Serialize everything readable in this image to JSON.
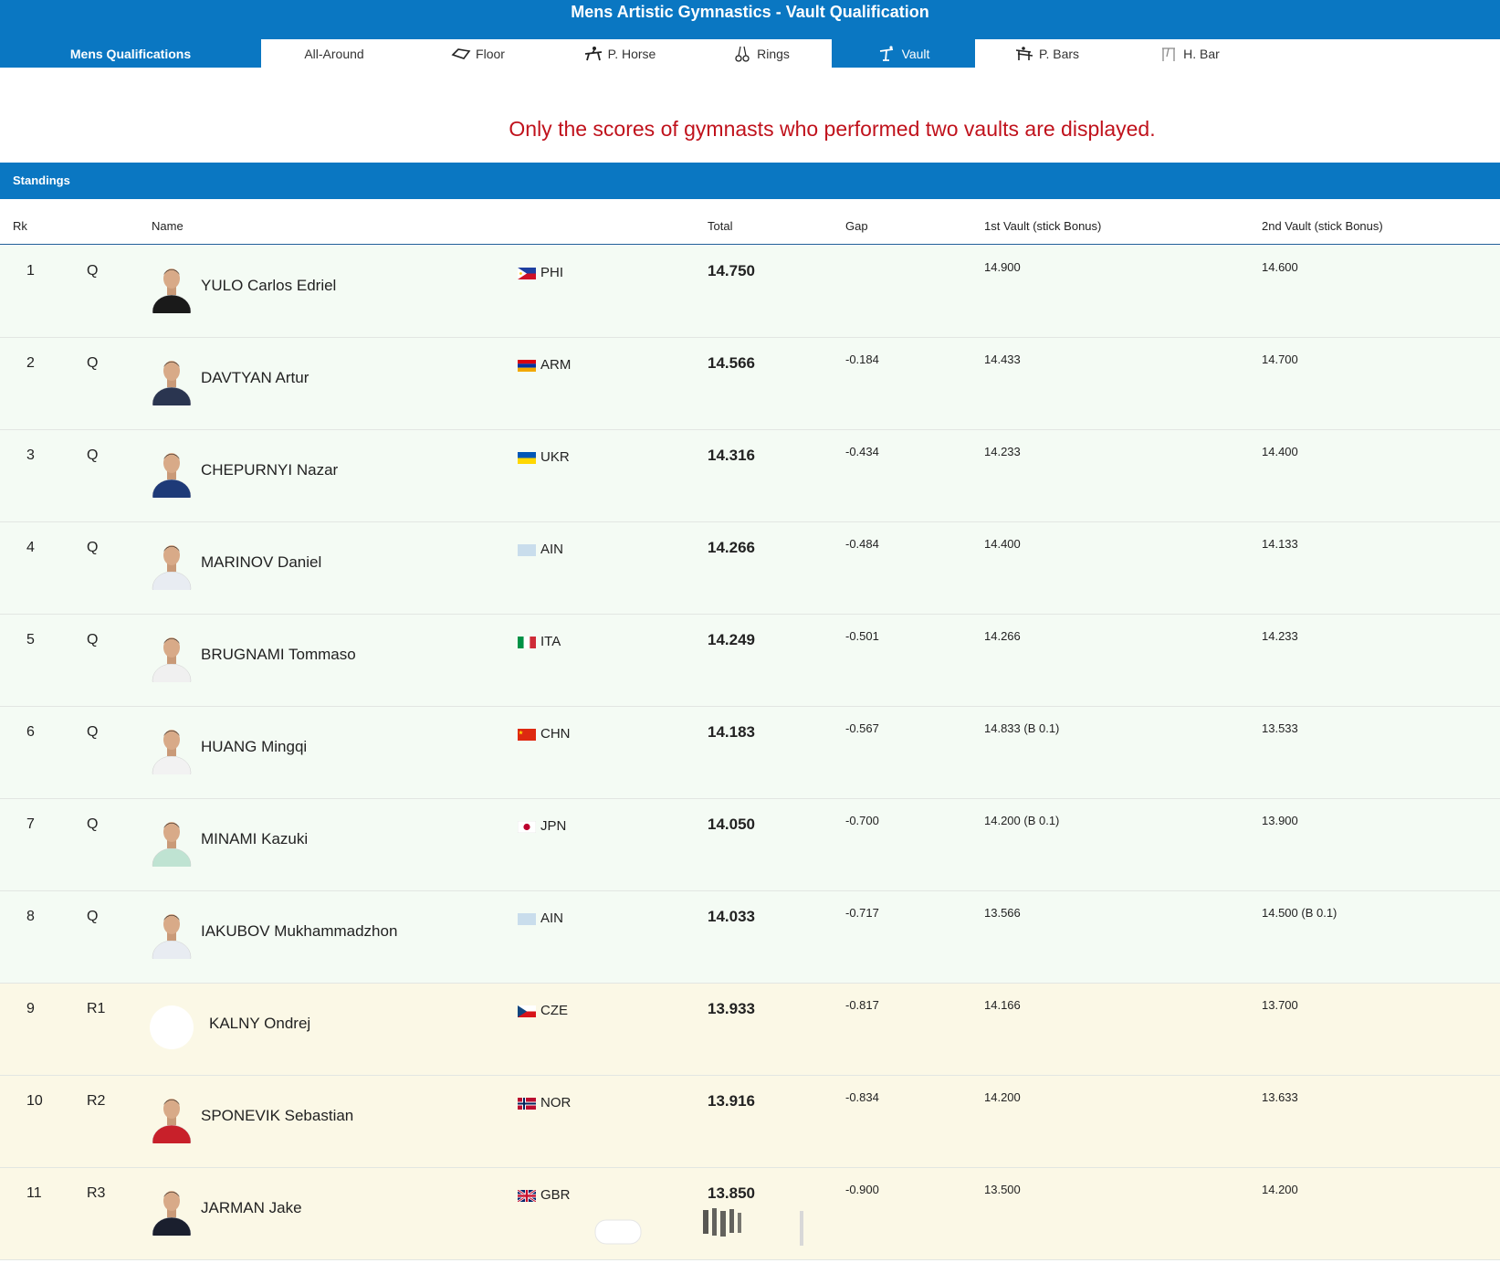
{
  "header": {
    "title": "Mens Artistic Gymnastics - Vault Qualification"
  },
  "tabs": [
    {
      "label": "Mens Qualifications",
      "icon": "none"
    },
    {
      "label": "All-Around",
      "icon": "none"
    },
    {
      "label": "Floor",
      "icon": "floor-icon"
    },
    {
      "label": "P. Horse",
      "icon": "pommel-horse-icon"
    },
    {
      "label": "Rings",
      "icon": "rings-icon"
    },
    {
      "label": "Vault",
      "icon": "vault-icon",
      "active": true
    },
    {
      "label": "P. Bars",
      "icon": "parallel-bars-icon"
    },
    {
      "label": "H. Bar",
      "icon": "high-bar-icon"
    }
  ],
  "notice": "Only the scores of gymnasts who performed two vaults are displayed.",
  "section_title": "Standings",
  "columns": {
    "rk": "Rk",
    "name": "Name",
    "total": "Total",
    "gap": "Gap",
    "v1": "1st Vault (stick Bonus)",
    "v2": "2nd Vault (stick Bonus)"
  },
  "rows": [
    {
      "rk": "1",
      "q": "Q",
      "name": "YULO Carlos Edriel",
      "noc": "PHI",
      "total": "14.750",
      "gap": "",
      "v1": "14.900",
      "v2": "14.600",
      "shirt": "#1a1a1a"
    },
    {
      "rk": "2",
      "q": "Q",
      "name": "DAVTYAN Artur",
      "noc": "ARM",
      "total": "14.566",
      "gap": "-0.184",
      "v1": "14.433",
      "v2": "14.700",
      "shirt": "#2a3550"
    },
    {
      "rk": "3",
      "q": "Q",
      "name": "CHEPURNYI Nazar",
      "noc": "UKR",
      "total": "14.316",
      "gap": "-0.434",
      "v1": "14.233",
      "v2": "14.400",
      "shirt": "#1e3a78"
    },
    {
      "rk": "4",
      "q": "Q",
      "name": "MARINOV Daniel",
      "noc": "AIN",
      "total": "14.266",
      "gap": "-0.484",
      "v1": "14.400",
      "v2": "14.133",
      "shirt": "#e8ecf2"
    },
    {
      "rk": "5",
      "q": "Q",
      "name": "BRUGNAMI Tommaso",
      "noc": "ITA",
      "total": "14.249",
      "gap": "-0.501",
      "v1": "14.266",
      "v2": "14.233",
      "shirt": "#f0f0f0"
    },
    {
      "rk": "6",
      "q": "Q",
      "name": "HUANG Mingqi",
      "noc": "CHN",
      "total": "14.183",
      "gap": "-0.567",
      "v1": "14.833 (B 0.1)",
      "v2": "13.533",
      "shirt": "#f2f2f2"
    },
    {
      "rk": "7",
      "q": "Q",
      "name": "MINAMI Kazuki",
      "noc": "JPN",
      "total": "14.050",
      "gap": "-0.700",
      "v1": "14.200 (B 0.1)",
      "v2": "13.900",
      "shirt": "#bfe3d2"
    },
    {
      "rk": "8",
      "q": "Q",
      "name": "IAKUBOV Mukhammadzhon",
      "noc": "AIN",
      "total": "14.033",
      "gap": "-0.717",
      "v1": "13.566",
      "v2": "14.500 (B 0.1)",
      "shirt": "#e8ecf2"
    },
    {
      "rk": "9",
      "q": "R1",
      "name": "KALNY Ondrej",
      "noc": "CZE",
      "total": "13.933",
      "gap": "-0.817",
      "v1": "14.166",
      "v2": "13.700",
      "shirt": "none"
    },
    {
      "rk": "10",
      "q": "R2",
      "name": "SPONEVIK Sebastian",
      "noc": "NOR",
      "total": "13.916",
      "gap": "-0.834",
      "v1": "14.200",
      "v2": "13.633",
      "shirt": "#c8202a"
    },
    {
      "rk": "11",
      "q": "R3",
      "name": "JARMAN Jake",
      "noc": "GBR",
      "total": "13.850",
      "gap": "-0.900",
      "v1": "13.500",
      "v2": "14.200",
      "shirt": "#1a1f2e"
    }
  ],
  "colors": {
    "brand_blue": "#0a77c2",
    "notice_red": "#c0121c",
    "qualified_bg": "#f4fbf4",
    "reserve_bg": "#fbf8e6"
  }
}
